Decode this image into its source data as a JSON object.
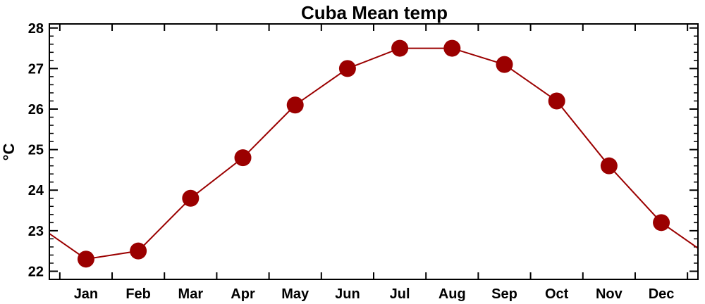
{
  "chart_data": {
    "type": "line",
    "title": "Cuba Mean temp",
    "xlabel": "",
    "ylabel": "°C",
    "categories": [
      "Jan",
      "Feb",
      "Mar",
      "Apr",
      "May",
      "Jun",
      "Jul",
      "Aug",
      "Sep",
      "Oct",
      "Nov",
      "Dec"
    ],
    "values": [
      22.3,
      22.5,
      23.8,
      24.8,
      26.1,
      27.0,
      27.5,
      27.5,
      27.1,
      26.2,
      24.6,
      23.2
    ],
    "ylim": [
      21.8,
      28.1
    ],
    "yticks": [
      22,
      23,
      24,
      25,
      26,
      27,
      28
    ],
    "grid": false,
    "line_wraps_around_year": true,
    "colors": {
      "series": "#9b0000",
      "axes": "#000000"
    }
  }
}
